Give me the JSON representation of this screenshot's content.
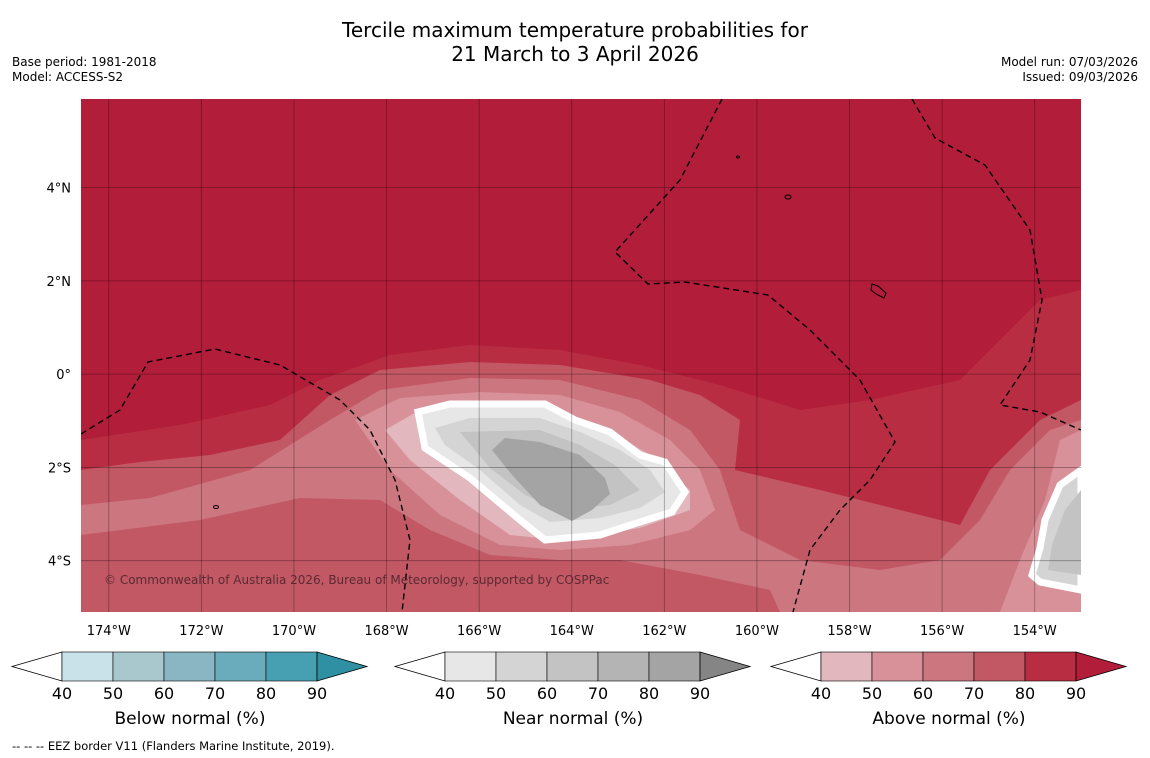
{
  "title": {
    "line1": "Tercile maximum temperature probabilities for",
    "line2": "21 March to 3 April 2026"
  },
  "meta": {
    "base_period": "Base period: 1981-2018",
    "model": "Model: ACCESS-S2",
    "model_run": "Model run: 07/03/2026",
    "issued": "Issued: 09/03/2026"
  },
  "map": {
    "lon_range": [
      -174.6,
      -153.0
    ],
    "lat_range": [
      -5.1,
      5.9
    ],
    "lat_ticks": [
      {
        "value": 4,
        "label": "4°N"
      },
      {
        "value": 2,
        "label": "2°N"
      },
      {
        "value": 0,
        "label": "0°"
      },
      {
        "value": -2,
        "label": "2°S"
      },
      {
        "value": -4,
        "label": "4°S"
      }
    ],
    "lon_ticks": [
      {
        "value": -174,
        "label": "174°W"
      },
      {
        "value": -172,
        "label": "172°W"
      },
      {
        "value": -170,
        "label": "170°W"
      },
      {
        "value": -168,
        "label": "168°W"
      },
      {
        "value": -166,
        "label": "166°W"
      },
      {
        "value": -164,
        "label": "164°W"
      },
      {
        "value": -162,
        "label": "162°W"
      },
      {
        "value": -160,
        "label": "160°W"
      },
      {
        "value": -158,
        "label": "158°W"
      },
      {
        "value": -156,
        "label": "156°W"
      },
      {
        "value": -154,
        "label": "154°W"
      }
    ],
    "copyright": "© Commonwealth of Australia 2026, Bureau of Meteorology, supported by COSPPac",
    "grid": true
  },
  "colorbars": [
    {
      "label": "Below normal (%)",
      "ticks": [
        "40",
        "50",
        "60",
        "70",
        "80",
        "90"
      ],
      "colors": [
        "#ffffff",
        "#c9e1e8",
        "#a9c8ce",
        "#8ab6c3",
        "#6aacbb",
        "#47a0b1",
        "#2f8fa3"
      ]
    },
    {
      "label": "Near normal (%)",
      "ticks": [
        "40",
        "50",
        "60",
        "70",
        "80",
        "90"
      ],
      "colors": [
        "#ffffff",
        "#e7e7e7",
        "#d4d4d4",
        "#c3c3c3",
        "#b4b4b4",
        "#a4a4a4",
        "#858585"
      ]
    },
    {
      "label": "Above normal (%)",
      "ticks": [
        "40",
        "50",
        "60",
        "70",
        "80",
        "90"
      ],
      "colors": [
        "#ffffff",
        "#e2b7bd",
        "#d99199",
        "#cc7680",
        "#c25864",
        "#b92d43",
        "#b21d39"
      ]
    }
  ],
  "footnote": "--  --  -- EEZ border V11 (Flanders Marine Institute, 2019)."
}
